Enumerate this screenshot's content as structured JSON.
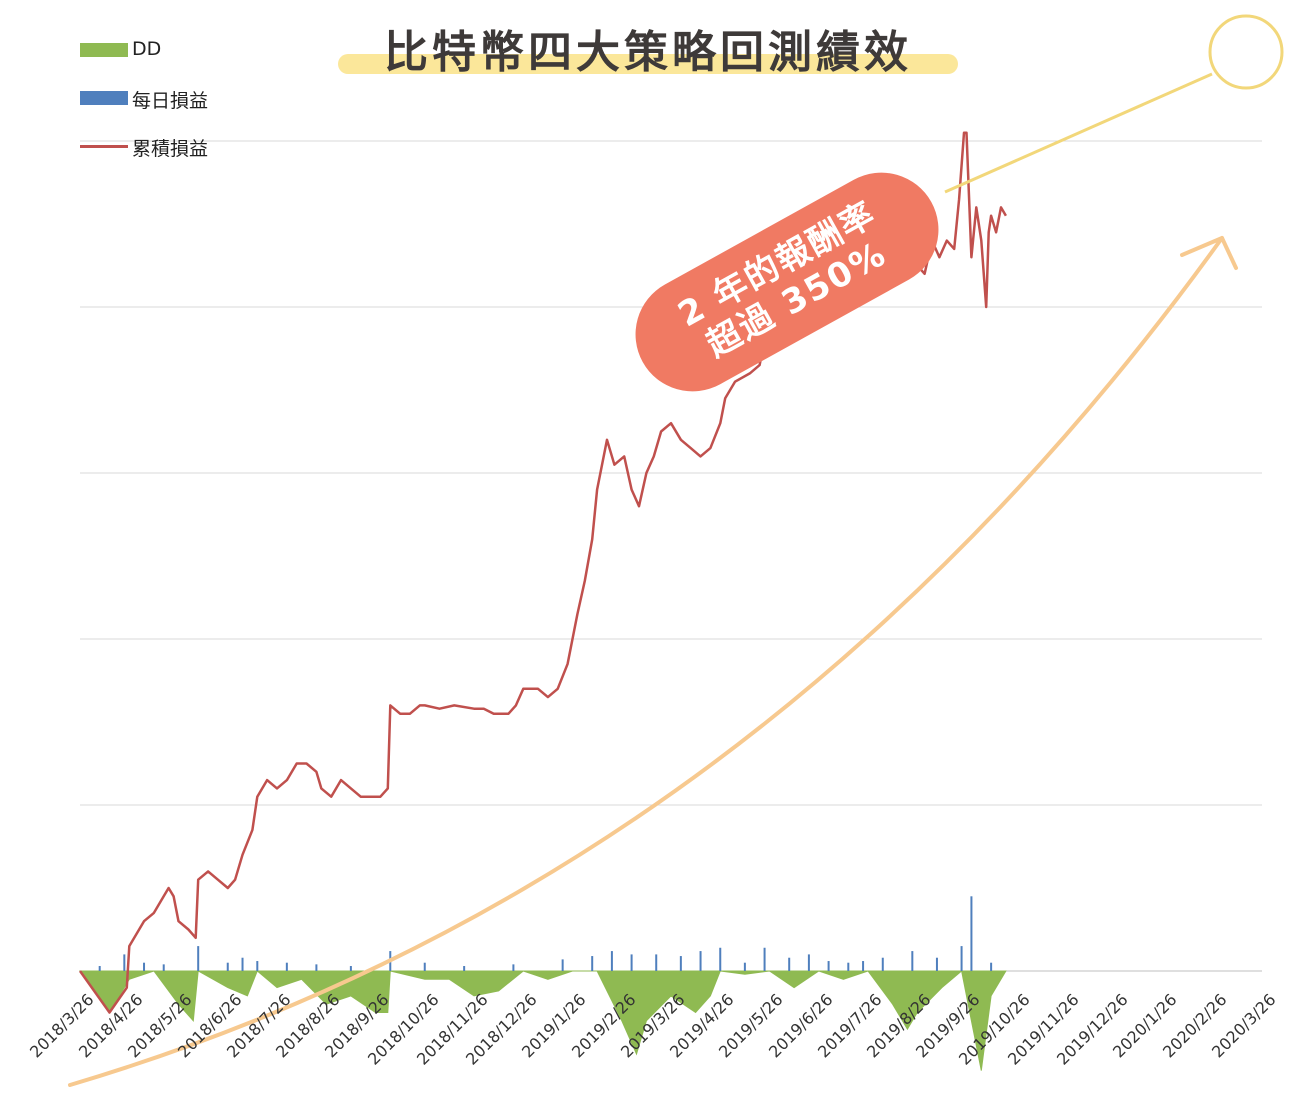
{
  "title": "比特幣四大策略回測績效",
  "annotation": {
    "line1": "2 年的報酬率",
    "line2": "超過 350%"
  },
  "colors": {
    "dd": "#8fba52",
    "daily": "#4f7fbd",
    "cumulative": "#c0504d",
    "arrow": "#f7c98f",
    "callout_line": "#f2d77a",
    "bubble": "#f07a63",
    "grid": "#d9d9d9"
  },
  "chart_data": {
    "type": "line",
    "title": "比特幣四大策略回測績效",
    "legend_position": "top-left",
    "grid": true,
    "legend": [
      {
        "name": "DD",
        "kind": "area"
      },
      {
        "name": "每日損益",
        "kind": "bar"
      },
      {
        "name": "累積損益",
        "kind": "line"
      }
    ],
    "categories": [
      "2018/3/26",
      "2018/4/26",
      "2018/5/26",
      "2018/6/26",
      "2018/7/26",
      "2018/8/26",
      "2018/9/26",
      "2018/10/26",
      "2018/11/26",
      "2018/12/26",
      "2019/1/26",
      "2019/2/26",
      "2019/3/26",
      "2019/4/26",
      "2019/5/26",
      "2019/6/26",
      "2019/7/26",
      "2019/8/26",
      "2019/9/26",
      "2019/10/26",
      "2019/11/26",
      "2019/12/26",
      "2020/1/26",
      "2020/2/26",
      "2020/3/26"
    ],
    "y_units": "relative (gridline steps, no printed labels)",
    "ylim": [
      -0.6,
      6.1
    ],
    "series": [
      {
        "name": "累積損益",
        "points": [
          [
            0,
            0
          ],
          [
            0.6,
            -0.25
          ],
          [
            0.95,
            -0.1
          ],
          [
            1.0,
            0.15
          ],
          [
            1.3,
            0.3
          ],
          [
            1.5,
            0.35
          ],
          [
            1.7,
            0.45
          ],
          [
            1.8,
            0.5
          ],
          [
            1.9,
            0.45
          ],
          [
            2.0,
            0.3
          ],
          [
            2.2,
            0.25
          ],
          [
            2.35,
            0.2
          ],
          [
            2.4,
            0.55
          ],
          [
            2.6,
            0.6
          ],
          [
            2.8,
            0.55
          ],
          [
            3.0,
            0.5
          ],
          [
            3.15,
            0.55
          ],
          [
            3.3,
            0.7
          ],
          [
            3.5,
            0.85
          ],
          [
            3.6,
            1.05
          ],
          [
            3.8,
            1.15
          ],
          [
            4.0,
            1.1
          ],
          [
            4.2,
            1.15
          ],
          [
            4.4,
            1.25
          ],
          [
            4.6,
            1.25
          ],
          [
            4.8,
            1.2
          ],
          [
            4.9,
            1.1
          ],
          [
            5.1,
            1.05
          ],
          [
            5.3,
            1.15
          ],
          [
            5.5,
            1.1
          ],
          [
            5.7,
            1.05
          ],
          [
            5.9,
            1.05
          ],
          [
            6.1,
            1.05
          ],
          [
            6.25,
            1.1
          ],
          [
            6.3,
            1.6
          ],
          [
            6.5,
            1.55
          ],
          [
            6.7,
            1.55
          ],
          [
            6.9,
            1.6
          ],
          [
            7.0,
            1.6
          ],
          [
            7.3,
            1.58
          ],
          [
            7.6,
            1.6
          ],
          [
            8.0,
            1.58
          ],
          [
            8.2,
            1.58
          ],
          [
            8.4,
            1.55
          ],
          [
            8.7,
            1.55
          ],
          [
            8.85,
            1.6
          ],
          [
            9.0,
            1.7
          ],
          [
            9.3,
            1.7
          ],
          [
            9.5,
            1.65
          ],
          [
            9.7,
            1.7
          ],
          [
            9.9,
            1.85
          ],
          [
            10.1,
            2.15
          ],
          [
            10.25,
            2.35
          ],
          [
            10.4,
            2.6
          ],
          [
            10.5,
            2.9
          ],
          [
            10.7,
            3.2
          ],
          [
            10.85,
            3.05
          ],
          [
            11.05,
            3.1
          ],
          [
            11.2,
            2.9
          ],
          [
            11.35,
            2.8
          ],
          [
            11.5,
            3.0
          ],
          [
            11.65,
            3.1
          ],
          [
            11.8,
            3.25
          ],
          [
            12.0,
            3.3
          ],
          [
            12.2,
            3.2
          ],
          [
            12.4,
            3.15
          ],
          [
            12.6,
            3.1
          ],
          [
            12.8,
            3.15
          ],
          [
            13.0,
            3.3
          ],
          [
            13.1,
            3.45
          ],
          [
            13.3,
            3.55
          ],
          [
            13.6,
            3.6
          ],
          [
            13.8,
            3.65
          ],
          [
            14.0,
            3.95
          ],
          [
            14.2,
            4.0
          ],
          [
            14.4,
            4.05
          ],
          [
            14.6,
            4.05
          ],
          [
            14.8,
            4.25
          ],
          [
            15.0,
            4.4
          ],
          [
            15.2,
            4.55
          ],
          [
            15.4,
            4.45
          ],
          [
            15.6,
            4.55
          ],
          [
            15.8,
            4.55
          ],
          [
            16.0,
            4.45
          ],
          [
            16.2,
            4.5
          ],
          [
            16.35,
            4.58
          ],
          [
            16.6,
            4.6
          ],
          [
            16.8,
            4.3
          ],
          [
            17.0,
            4.25
          ],
          [
            17.15,
            4.2
          ],
          [
            17.3,
            4.4
          ],
          [
            17.45,
            4.3
          ],
          [
            17.6,
            4.4
          ],
          [
            17.75,
            4.35
          ],
          [
            17.85,
            4.65
          ],
          [
            17.95,
            5.05
          ],
          [
            18.0,
            5.05
          ],
          [
            18.1,
            4.3
          ],
          [
            18.2,
            4.6
          ],
          [
            18.3,
            4.4
          ],
          [
            18.4,
            4.0
          ],
          [
            18.45,
            4.45
          ],
          [
            18.5,
            4.55
          ],
          [
            18.6,
            4.45
          ],
          [
            18.7,
            4.6
          ],
          [
            18.8,
            4.55
          ]
        ]
      },
      {
        "name": "DD",
        "points": [
          [
            0,
            0
          ],
          [
            0.6,
            -0.25
          ],
          [
            1.0,
            -0.05
          ],
          [
            1.5,
            0
          ],
          [
            2.0,
            -0.2
          ],
          [
            2.3,
            -0.3
          ],
          [
            2.4,
            0
          ],
          [
            3.0,
            -0.1
          ],
          [
            3.4,
            -0.15
          ],
          [
            3.6,
            0
          ],
          [
            4.0,
            -0.1
          ],
          [
            4.5,
            -0.05
          ],
          [
            5.0,
            -0.2
          ],
          [
            5.5,
            -0.15
          ],
          [
            6.0,
            -0.25
          ],
          [
            6.25,
            -0.25
          ],
          [
            6.3,
            0
          ],
          [
            7.0,
            -0.05
          ],
          [
            7.5,
            -0.05
          ],
          [
            8.0,
            -0.15
          ],
          [
            8.5,
            -0.12
          ],
          [
            9.0,
            0
          ],
          [
            9.5,
            -0.05
          ],
          [
            10.0,
            0
          ],
          [
            10.5,
            0
          ],
          [
            11.0,
            -0.3
          ],
          [
            11.3,
            -0.5
          ],
          [
            11.5,
            -0.3
          ],
          [
            12.0,
            -0.15
          ],
          [
            12.5,
            -0.25
          ],
          [
            12.8,
            -0.15
          ],
          [
            13.0,
            0
          ],
          [
            13.5,
            -0.02
          ],
          [
            14.0,
            0
          ],
          [
            14.5,
            -0.1
          ],
          [
            15.0,
            0
          ],
          [
            15.5,
            -0.05
          ],
          [
            16.0,
            0
          ],
          [
            16.5,
            -0.2
          ],
          [
            16.8,
            -0.35
          ],
          [
            17.0,
            -0.25
          ],
          [
            17.5,
            -0.1
          ],
          [
            17.9,
            0
          ],
          [
            18.1,
            -0.3
          ],
          [
            18.3,
            -0.6
          ],
          [
            18.5,
            -0.15
          ],
          [
            18.8,
            0
          ]
        ]
      },
      {
        "name": "每日損益",
        "points": [
          [
            0.4,
            0.03
          ],
          [
            0.9,
            0.1
          ],
          [
            1.3,
            0.05
          ],
          [
            1.7,
            0.04
          ],
          [
            2.4,
            0.15
          ],
          [
            3.0,
            0.05
          ],
          [
            3.3,
            0.08
          ],
          [
            3.6,
            0.06
          ],
          [
            4.2,
            0.05
          ],
          [
            4.8,
            0.04
          ],
          [
            5.5,
            0.03
          ],
          [
            6.3,
            0.12
          ],
          [
            7.0,
            0.05
          ],
          [
            7.8,
            0.03
          ],
          [
            8.8,
            0.04
          ],
          [
            9.8,
            0.07
          ],
          [
            10.4,
            0.09
          ],
          [
            10.8,
            0.12
          ],
          [
            11.2,
            0.1
          ],
          [
            11.7,
            0.1
          ],
          [
            12.2,
            0.09
          ],
          [
            12.6,
            0.12
          ],
          [
            13.0,
            0.14
          ],
          [
            13.5,
            0.05
          ],
          [
            13.9,
            0.14
          ],
          [
            14.4,
            0.08
          ],
          [
            14.8,
            0.1
          ],
          [
            15.2,
            0.06
          ],
          [
            15.6,
            0.05
          ],
          [
            15.9,
            0.06
          ],
          [
            16.3,
            0.08
          ],
          [
            16.9,
            0.12
          ],
          [
            17.4,
            0.08
          ],
          [
            17.9,
            0.15
          ],
          [
            18.1,
            0.45
          ],
          [
            18.5,
            0.05
          ]
        ]
      }
    ]
  }
}
